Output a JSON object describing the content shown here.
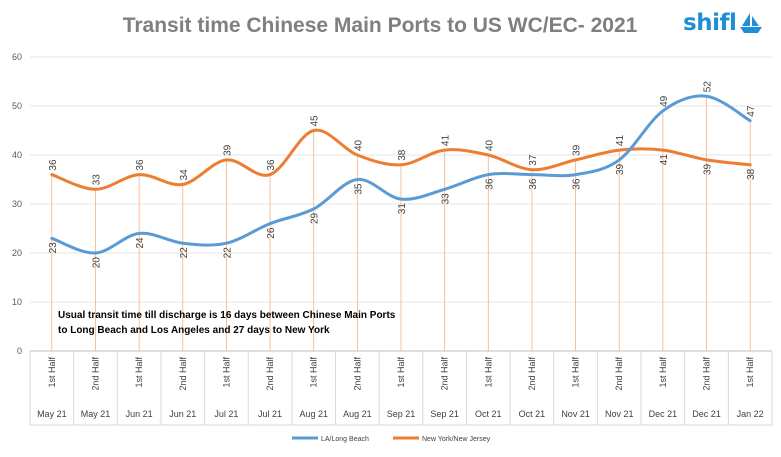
{
  "chart_data": {
    "type": "line",
    "title": "Transit time Chinese Main Ports to US WC/EC- 2021",
    "categories": [
      "1st Half",
      "2nd Half",
      "1st Half",
      "2nd Half",
      "1st Half",
      "2nd Half",
      "1st Half",
      "2nd Half",
      "1st Half",
      "2nd Half",
      "1st Half",
      "2nd Half",
      "1st Half",
      "2nd Half",
      "1st Half",
      "2nd Half",
      "1st Half"
    ],
    "months": [
      "May 21",
      "May 21",
      "Jun 21",
      "Jun 21",
      "Jul 21",
      "Jul 21",
      "Aug 21",
      "Aug 21",
      "Sep 21",
      "Sep 21",
      "Oct 21",
      "Oct 21",
      "Nov 21",
      "Nov 21",
      "Dec 21",
      "Dec 21",
      "Jan 22"
    ],
    "series": [
      {
        "name": "LA/Long Beach",
        "color": "#5b9bd5",
        "values": [
          23,
          20,
          24,
          22,
          22,
          26,
          29,
          35,
          31,
          33,
          36,
          36,
          36,
          39,
          49,
          52,
          47
        ]
      },
      {
        "name": "New York/New Jersey",
        "color": "#ed7d31",
        "values": [
          36,
          33,
          36,
          34,
          39,
          36,
          45,
          40,
          38,
          41,
          40,
          37,
          39,
          41,
          41,
          39,
          38
        ]
      }
    ],
    "yticks": [
      "0",
      "10",
      "20",
      "30",
      "40",
      "50",
      "60"
    ],
    "ylim": [
      0,
      60
    ],
    "grid": true,
    "legend": "bottom",
    "annotation": "Usual transit time till discharge is 16 days between Chinese Main Ports to Long Beach and Los Angeles and 27 days to New York"
  },
  "logo": {
    "text": "shifl",
    "icon": "boat-icon"
  }
}
